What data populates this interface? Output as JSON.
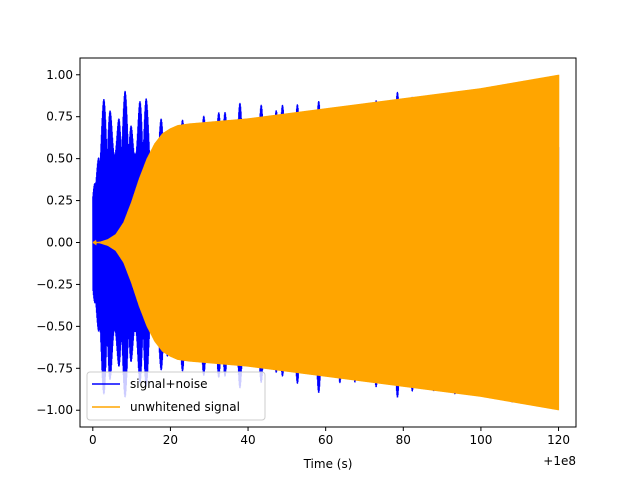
{
  "chart_data": {
    "type": "line",
    "title": "",
    "xlabel": "Time (s)",
    "ylabel": "",
    "x_offset_label": "+1e8",
    "xlim": [
      -3.3,
      124.5
    ],
    "ylim": [
      -1.1,
      1.1
    ],
    "x_ticks": [
      0,
      20,
      40,
      60,
      80,
      100,
      120
    ],
    "x_tick_labels": [
      "0",
      "20",
      "40",
      "60",
      "80",
      "100",
      "120"
    ],
    "y_ticks": [
      -1.0,
      -0.75,
      -0.5,
      -0.25,
      0.0,
      0.25,
      0.5,
      0.75,
      1.0
    ],
    "y_tick_labels": [
      "−1.00",
      "−0.75",
      "−0.50",
      "−0.25",
      "0.00",
      "0.25",
      "0.50",
      "0.75",
      "1.00"
    ],
    "grid": false,
    "legend_position": "lower-left",
    "series": [
      {
        "name": "signal+noise",
        "color": "#0000ff",
        "envelope_x": [
          0,
          2,
          4,
          6,
          8,
          10,
          12,
          14,
          16,
          18,
          20,
          25,
          30,
          35,
          40,
          45,
          50,
          55,
          60,
          65,
          70,
          75,
          80,
          85,
          90,
          95,
          100,
          105,
          110,
          115,
          120
        ],
        "envelope_upper": [
          0.5,
          0.85,
          0.9,
          0.96,
          0.9,
          0.93,
          0.95,
          0.88,
          0.82,
          0.75,
          0.72,
          0.74,
          0.78,
          0.86,
          0.82,
          0.83,
          0.88,
          0.8,
          0.87,
          0.78,
          0.83,
          0.86,
          0.94,
          0.88,
          0.89,
          0.9,
          0.92,
          0.94,
          0.95,
          0.97,
          0.99
        ],
        "envelope_lower": [
          -0.5,
          -0.9,
          -0.95,
          -0.95,
          -0.92,
          -0.95,
          -0.94,
          -0.88,
          -0.82,
          -0.78,
          -0.75,
          -0.78,
          -0.82,
          -0.88,
          -0.87,
          -0.83,
          -0.85,
          -0.86,
          -0.92,
          -0.85,
          -0.87,
          -0.86,
          -0.98,
          -0.88,
          -0.9,
          -0.92,
          -0.93,
          -0.95,
          -0.96,
          -0.98,
          -1.0
        ]
      },
      {
        "name": "unwhitened signal",
        "color": "#ffa500",
        "envelope_x": [
          0,
          2,
          4,
          6,
          8,
          10,
          12,
          14,
          16,
          18,
          20,
          22,
          25,
          30,
          40,
          50,
          60,
          70,
          80,
          90,
          100,
          110,
          120
        ],
        "envelope_amp": [
          0.0,
          0.005,
          0.02,
          0.05,
          0.12,
          0.24,
          0.38,
          0.5,
          0.59,
          0.65,
          0.68,
          0.7,
          0.71,
          0.72,
          0.74,
          0.77,
          0.8,
          0.83,
          0.86,
          0.89,
          0.92,
          0.96,
          1.0
        ]
      }
    ]
  }
}
